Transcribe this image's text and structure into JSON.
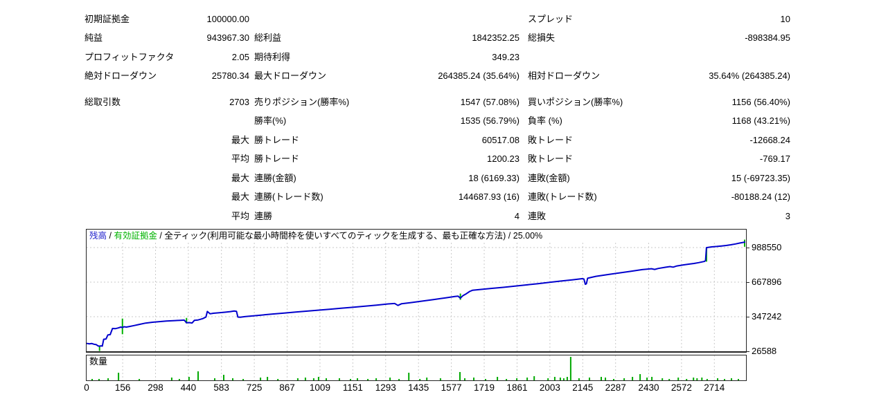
{
  "stats": {
    "rows": [
      {
        "l1": "初期証拠金",
        "v1": "100000.00",
        "l2": "",
        "v2": "",
        "l3": "スプレッド",
        "v3": "10",
        "gap": false
      },
      {
        "l1": "純益",
        "v1": "943967.30",
        "l2": "総利益",
        "v2": "1842352.25",
        "l3": "総損失",
        "v3": "-898384.95",
        "gap": false
      },
      {
        "l1": "プロフィットファクタ",
        "v1": "2.05",
        "l2": "期待利得",
        "v2": "349.23",
        "l3": "",
        "v3": "",
        "gap": false
      },
      {
        "l1": "絶対ドローダウン",
        "v1": "25780.34",
        "l2": "最大ドローダウン",
        "v2": "264385.24 (35.64%)",
        "l3": "相対ドローダウン",
        "v3": "35.64% (264385.24)",
        "gap": false
      },
      {
        "l1": "総取引数",
        "v1": "2703",
        "l2": "売りポジション(勝率%)",
        "v2": "1547 (57.08%)",
        "l3": "買いポジション(勝率%)",
        "v3": "1156 (56.40%)",
        "gap": true
      },
      {
        "l1": "",
        "v1": "",
        "l2": "勝率(%)",
        "v2": "1535 (56.79%)",
        "l3": "負率 (%)",
        "v3": "1168 (43.21%)",
        "gap": false
      },
      {
        "l1": "",
        "v1": "最大",
        "l2": "勝トレード",
        "v2": "60517.08",
        "l3": "敗トレード",
        "v3": "-12668.24",
        "gap": false
      },
      {
        "l1": "",
        "v1": "平均",
        "l2": "勝トレード",
        "v2": "1200.23",
        "l3": "敗トレード",
        "v3": "-769.17",
        "gap": false
      },
      {
        "l1": "",
        "v1": "最大",
        "l2": "連勝(金額)",
        "v2": "18 (6169.33)",
        "l3": "連敗(金額)",
        "v3": "15 (-69723.35)",
        "gap": false
      },
      {
        "l1": "",
        "v1": "最大",
        "l2": "連勝(トレード数)",
        "v2": "144687.93 (16)",
        "l3": "連敗(トレード数)",
        "v3": "-80188.24 (12)",
        "gap": false
      },
      {
        "l1": "",
        "v1": "平均",
        "l2": "連勝",
        "v2": "4",
        "l3": "連敗",
        "v3": "3",
        "gap": false
      }
    ]
  },
  "legend": {
    "balance": "残高",
    "sep": " / ",
    "equity": "有効証拠金",
    "model": "全ティック(利用可能な最小時間枠を使いすべてのティックを生成する、最も正確な方法)",
    "quality": "25.00%"
  },
  "volume": {
    "label": "数量"
  },
  "colors": {
    "balance_line": "#0000cd",
    "equity_line": "#00b300",
    "volume_bar": "#00a800",
    "grid": "#c9c9c9",
    "border": "#222222",
    "legend_balance": "#2222cc",
    "legend_equity": "#00b300"
  },
  "chart_data": {
    "type": "line",
    "title": "",
    "xlabel": "",
    "ylabel": "",
    "x_ticks": [
      0,
      156,
      298,
      440,
      583,
      725,
      867,
      1009,
      1151,
      1293,
      1435,
      1577,
      1719,
      1861,
      2003,
      2145,
      2287,
      2430,
      2572,
      2714
    ],
    "y_ticks": [
      988550,
      667896,
      347242,
      26588
    ],
    "x_range": [
      0,
      2857
    ],
    "y_range": [
      26588,
      1155000
    ],
    "grid": "dashed",
    "legend_position": "top-left-inside",
    "series": [
      {
        "name": "残高",
        "type": "line",
        "color": "#0000cd",
        "points": [
          [
            0,
            100000
          ],
          [
            12,
            96000
          ],
          [
            22,
            99000
          ],
          [
            32,
            92000
          ],
          [
            42,
            88000
          ],
          [
            50,
            76000
          ],
          [
            56,
            74220
          ],
          [
            63,
            77000
          ],
          [
            68,
            75000
          ],
          [
            74,
            138000
          ],
          [
            84,
            141000
          ],
          [
            92,
            178000
          ],
          [
            102,
            181000
          ],
          [
            112,
            238000
          ],
          [
            124,
            236000
          ],
          [
            136,
            243000
          ],
          [
            148,
            251000
          ],
          [
            155,
            247000
          ],
          [
            162,
            254000
          ],
          [
            172,
            251000
          ],
          [
            186,
            257000
          ],
          [
            205,
            265000
          ],
          [
            225,
            274000
          ],
          [
            255,
            288000
          ],
          [
            285,
            296000
          ],
          [
            315,
            302000
          ],
          [
            345,
            307000
          ],
          [
            375,
            311000
          ],
          [
            405,
            314000
          ],
          [
            422,
            316000
          ],
          [
            432,
            291000
          ],
          [
            444,
            293000
          ],
          [
            456,
            289000
          ],
          [
            466,
            313000
          ],
          [
            482,
            317000
          ],
          [
            502,
            329000
          ],
          [
            516,
            344000
          ],
          [
            522,
            396000
          ],
          [
            534,
            374000
          ],
          [
            548,
            379000
          ],
          [
            570,
            383000
          ],
          [
            598,
            389000
          ],
          [
            622,
            395000
          ],
          [
            638,
            400000
          ],
          [
            648,
            397000
          ],
          [
            654,
            344000
          ],
          [
            664,
            342000
          ],
          [
            684,
            348000
          ],
          [
            704,
            352000
          ],
          [
            754,
            362000
          ],
          [
            804,
            372000
          ],
          [
            854,
            381000
          ],
          [
            904,
            390000
          ],
          [
            954,
            399000
          ],
          [
            1004,
            408000
          ],
          [
            1054,
            417000
          ],
          [
            1104,
            427000
          ],
          [
            1154,
            436000
          ],
          [
            1204,
            445000
          ],
          [
            1254,
            455000
          ],
          [
            1304,
            466000
          ],
          [
            1332,
            470000
          ],
          [
            1346,
            452000
          ],
          [
            1362,
            468000
          ],
          [
            1402,
            478000
          ],
          [
            1452,
            492000
          ],
          [
            1502,
            507000
          ],
          [
            1552,
            522000
          ],
          [
            1592,
            535000
          ],
          [
            1606,
            538000
          ],
          [
            1616,
            519000
          ],
          [
            1626,
            541000
          ],
          [
            1642,
            561000
          ],
          [
            1656,
            581000
          ],
          [
            1668,
            592000
          ],
          [
            1702,
            600000
          ],
          [
            1752,
            610000
          ],
          [
            1802,
            620000
          ],
          [
            1852,
            631000
          ],
          [
            1902,
            642000
          ],
          [
            1952,
            654000
          ],
          [
            2002,
            666000
          ],
          [
            2052,
            678000
          ],
          [
            2102,
            690000
          ],
          [
            2142,
            700000
          ],
          [
            2150,
            697000
          ],
          [
            2156,
            648000
          ],
          [
            2161,
            653000
          ],
          [
            2166,
            704000
          ],
          [
            2182,
            712000
          ],
          [
            2202,
            722000
          ],
          [
            2252,
            738000
          ],
          [
            2302,
            753000
          ],
          [
            2352,
            768000
          ],
          [
            2402,
            784000
          ],
          [
            2442,
            792000
          ],
          [
            2456,
            786000
          ],
          [
            2472,
            795000
          ],
          [
            2502,
            806000
          ],
          [
            2522,
            812000
          ],
          [
            2536,
            807000
          ],
          [
            2552,
            818000
          ],
          [
            2582,
            828000
          ],
          [
            2606,
            835000
          ],
          [
            2626,
            841000
          ],
          [
            2646,
            849000
          ],
          [
            2660,
            855000
          ],
          [
            2672,
            861000
          ],
          [
            2676,
            870000
          ],
          [
            2680,
            988000
          ],
          [
            2692,
            992000
          ],
          [
            2703,
            995000
          ],
          [
            2725,
            999000
          ],
          [
            2745,
            1003000
          ],
          [
            2765,
            1008000
          ],
          [
            2785,
            1014000
          ],
          [
            2805,
            1022000
          ],
          [
            2825,
            1031000
          ],
          [
            2842,
            1037000
          ],
          [
            2857,
            1043967
          ]
        ]
      },
      {
        "name": "有効証拠金",
        "type": "spikes",
        "color": "#00b300",
        "spikes": [
          [
            56,
            30000,
            80000
          ],
          [
            155,
            185000,
            330000
          ],
          [
            432,
            285000,
            336000
          ],
          [
            1616,
            504000,
            562000
          ],
          [
            2680,
            858000,
            990000
          ],
          [
            2845,
            996000,
            1062000
          ]
        ]
      }
    ],
    "volume_series": {
      "name": "数量",
      "type": "bar",
      "color": "#00a800",
      "bars": [
        [
          24,
          2
        ],
        [
          54,
          2
        ],
        [
          93,
          3
        ],
        [
          138,
          11
        ],
        [
          228,
          2
        ],
        [
          368,
          4
        ],
        [
          401,
          2
        ],
        [
          443,
          5
        ],
        [
          482,
          13
        ],
        [
          554,
          3
        ],
        [
          593,
          8
        ],
        [
          632,
          3
        ],
        [
          677,
          2
        ],
        [
          752,
          4
        ],
        [
          782,
          5
        ],
        [
          827,
          2
        ],
        [
          913,
          3
        ],
        [
          946,
          4
        ],
        [
          982,
          3
        ],
        [
          1003,
          5
        ],
        [
          1036,
          3
        ],
        [
          1093,
          3
        ],
        [
          1141,
          2
        ],
        [
          1171,
          3
        ],
        [
          1216,
          2
        ],
        [
          1252,
          3
        ],
        [
          1312,
          4
        ],
        [
          1351,
          2
        ],
        [
          1393,
          11
        ],
        [
          1441,
          2
        ],
        [
          1471,
          4
        ],
        [
          1530,
          3
        ],
        [
          1614,
          12
        ],
        [
          1635,
          3
        ],
        [
          1674,
          4
        ],
        [
          1725,
          2
        ],
        [
          1776,
          5
        ],
        [
          1815,
          2
        ],
        [
          1860,
          3
        ],
        [
          1905,
          4
        ],
        [
          1935,
          6
        ],
        [
          1995,
          3
        ],
        [
          2024,
          5
        ],
        [
          2048,
          4
        ],
        [
          2063,
          3
        ],
        [
          2078,
          5
        ],
        [
          2093,
          34
        ],
        [
          2129,
          3
        ],
        [
          2174,
          4
        ],
        [
          2225,
          5
        ],
        [
          2243,
          4
        ],
        [
          2279,
          2
        ],
        [
          2324,
          3
        ],
        [
          2360,
          5
        ],
        [
          2393,
          9
        ],
        [
          2423,
          4
        ],
        [
          2444,
          5
        ],
        [
          2489,
          3
        ],
        [
          2519,
          2
        ],
        [
          2558,
          4
        ],
        [
          2594,
          2
        ],
        [
          2624,
          4
        ],
        [
          2639,
          3
        ],
        [
          2660,
          4
        ],
        [
          2683,
          2
        ],
        [
          2728,
          3
        ],
        [
          2758,
          2
        ],
        [
          2788,
          3
        ],
        [
          2818,
          2
        ]
      ]
    }
  }
}
